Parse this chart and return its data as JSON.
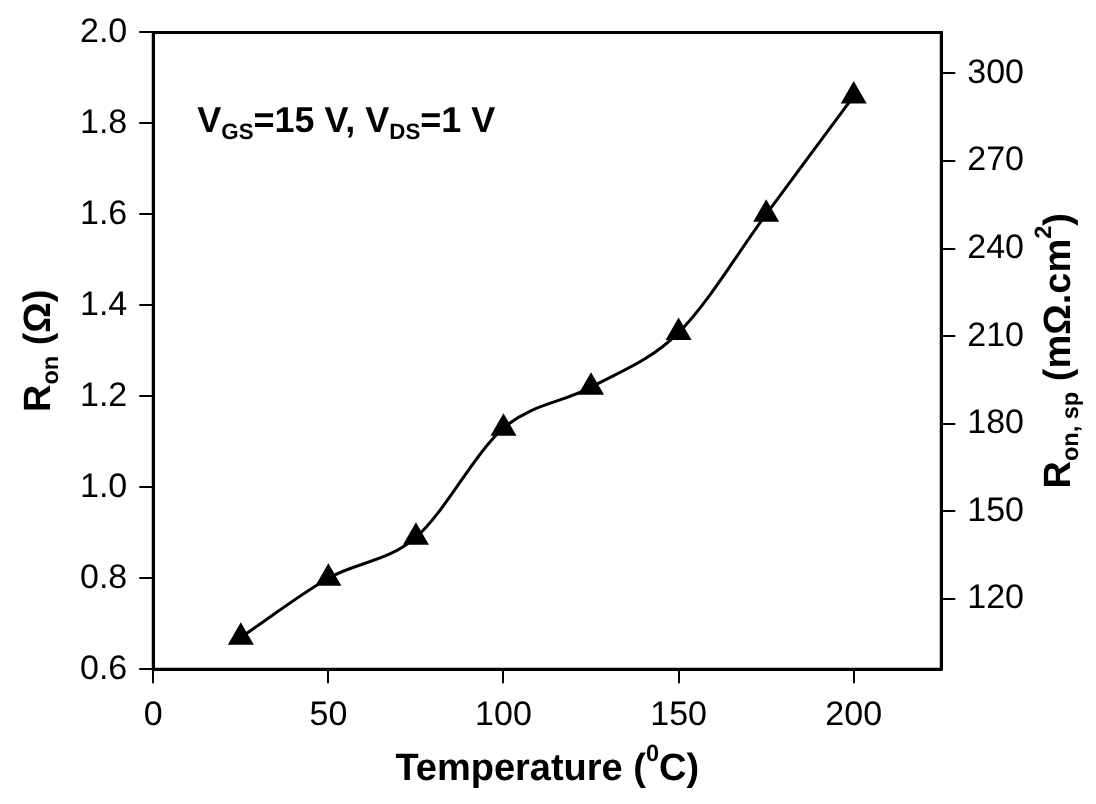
{
  "chart_data": {
    "type": "line",
    "xlabel": "Temperature ($^{0}$C)",
    "ylabel": "R$_{on}$ (Ω)",
    "y2label": "R$_{on, sp}$ (mΩ.cm$^{2}$)",
    "x": [
      25,
      50,
      75,
      100,
      125,
      150,
      175,
      200
    ],
    "series": [
      {
        "color": "#000000",
        "values": [
          0.67,
          0.8,
          0.89,
          1.13,
          1.22,
          1.34,
          1.6,
          1.86
        ]
      }
    ],
    "xlim": [
      0,
      225
    ],
    "xticks": [
      0,
      50,
      100,
      150,
      200
    ],
    "ylim": [
      0.6,
      2.0
    ],
    "yticks": [
      0.6,
      0.8,
      {
        "value": 1,
        "label": "1.0"
      },
      1.2,
      1.4,
      1.6,
      1.8,
      {
        "value": 2,
        "label": "2.0"
      }
    ],
    "y2lim": [
      96,
      314
    ],
    "y2ticks": [
      120,
      150,
      180,
      210,
      240,
      270,
      300
    ],
    "annotations": [
      "V$_{GS}$=15 V, V$_{DS}$=1 V"
    ],
    "marker": "triangle",
    "grid": false,
    "legend": false
  }
}
